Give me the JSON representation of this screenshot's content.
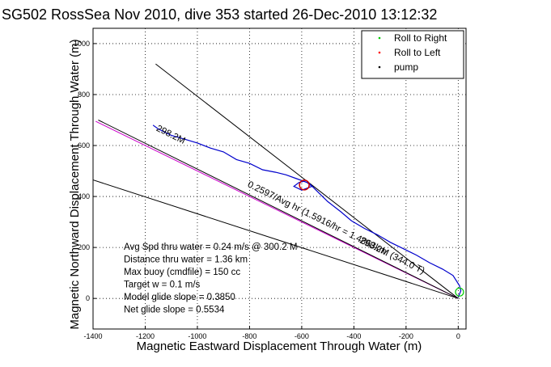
{
  "chart_data": {
    "type": "line",
    "title": "SG502 RossSea Nov 2010, dive 353 started 26-Dec-2010 13:12:32",
    "xlabel": "Magnetic Eastward Displacement Through Water (m)",
    "ylabel": "Magnetic Northward Displacement Through Water (m)",
    "xlim": [
      -1400,
      30
    ],
    "ylim": [
      -120,
      1060
    ],
    "xticks": [
      -1400,
      -1200,
      -1000,
      -800,
      -600,
      -400,
      -200,
      0
    ],
    "yticks": [
      0,
      200,
      400,
      600,
      800,
      1000
    ],
    "grid": true,
    "legend_position": "top-right",
    "legend": [
      {
        "label": "Roll to Right",
        "color": "#00cc00"
      },
      {
        "label": "Roll to Left",
        "color": "#ff0000"
      },
      {
        "label": "pump",
        "color": "#000000"
      }
    ],
    "track": {
      "color": "#0000cc",
      "x": [
        0,
        10,
        5,
        -20,
        -60,
        -110,
        -160,
        -210,
        -260,
        -310,
        -360,
        -410,
        -450,
        -500,
        -540,
        -570,
        -590,
        -610,
        -630,
        -600,
        -560,
        -580,
        -620,
        -660,
        -700,
        -750,
        -800,
        -850,
        -900,
        -950,
        -1000,
        -1050,
        -1100,
        -1150,
        -1170
      ],
      "y": [
        5,
        30,
        50,
        90,
        115,
        140,
        170,
        195,
        220,
        250,
        275,
        305,
        340,
        380,
        420,
        450,
        460,
        455,
        440,
        425,
        440,
        455,
        470,
        485,
        495,
        505,
        530,
        545,
        575,
        590,
        610,
        625,
        640,
        665,
        680
      ]
    },
    "lines": [
      {
        "name": "",
        "color": "#000000",
        "x": [
          0,
          -1160
        ],
        "y": [
          0,
          920
        ]
      },
      {
        "name": "",
        "color": "#000000",
        "x": [
          0,
          -1400
        ],
        "y": [
          0,
          465
        ]
      },
      {
        "name": "",
        "color": "#cc00cc",
        "x": [
          0,
          -1390
        ],
        "y": [
          0,
          695
        ]
      },
      {
        "name": "",
        "color": "#000000",
        "x": [
          0,
          -1380
        ],
        "y": [
          0,
          700
        ]
      }
    ],
    "circle": {
      "x": -590,
      "y": 445,
      "color": "#cc0000"
    },
    "end_marker": {
      "x": 5,
      "y": 25,
      "color": "#00cc00"
    },
    "rotated_labels": [
      {
        "text": "298.2M",
        "x": -1160,
        "y": 660
      },
      {
        "text": "0.2597/Avg hr (1.5916/hr = 1.4863km",
        "x": -810,
        "y": 440
      },
      {
        "text": "298.2M (344.0 T)",
        "x": -380,
        "y": 220
      }
    ],
    "annotations": [
      "Avg Spd thru water =  0.24 m/s @ 300.2  M",
      "Distance thru water =  1.36 km",
      "Max buoy (cmdfile) = 150 cc",
      "Target w = 0.1 m/s",
      "Model glide slope = 0.3850",
      "Net glide slope = 0.5534"
    ]
  }
}
